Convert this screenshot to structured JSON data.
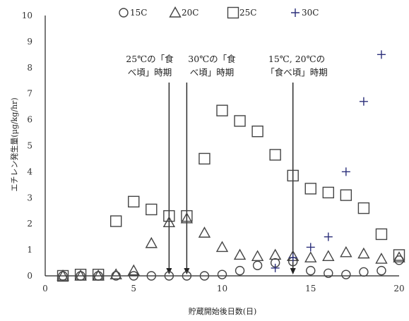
{
  "chart_data": {
    "type": "scatter",
    "title": "",
    "xlabel": "貯蔵開始後日数(日)",
    "ylabel": "エチレン発生量(μg/kg/hr)",
    "xlim": [
      0,
      20
    ],
    "ylim": [
      0,
      10
    ],
    "x_ticks": [
      "0",
      "5",
      "10",
      "15",
      "20"
    ],
    "y_ticks": [
      "0",
      "1",
      "2",
      "3",
      "4",
      "5",
      "6",
      "7",
      "8",
      "9",
      "10"
    ],
    "legend_position": "top",
    "series": [
      {
        "name": "15C",
        "marker": "circle",
        "x": [
          1,
          2,
          3,
          4,
          5,
          6,
          7,
          8,
          9,
          10,
          11,
          12,
          13,
          14,
          15,
          16,
          17,
          18,
          19,
          20
        ],
        "y": [
          0,
          0,
          0,
          0,
          0,
          0,
          0,
          0,
          0,
          0.05,
          0.2,
          0.4,
          0.5,
          0.55,
          0.2,
          0.1,
          0.05,
          0.15,
          0.2,
          0.6
        ]
      },
      {
        "name": "20C",
        "marker": "triangle",
        "x": [
          1,
          2,
          3,
          4,
          5,
          6,
          7,
          8,
          9,
          10,
          11,
          12,
          13,
          14,
          15,
          16,
          17,
          18,
          19,
          20
        ],
        "y": [
          0,
          0,
          0,
          0.05,
          0.2,
          1.25,
          2.05,
          2.2,
          1.65,
          1.1,
          0.8,
          0.75,
          0.8,
          0.75,
          0.7,
          0.75,
          0.9,
          0.85,
          0.65,
          0.7
        ]
      },
      {
        "name": "25C",
        "marker": "square",
        "x": [
          1,
          2,
          3,
          4,
          5,
          6,
          7,
          8,
          9,
          10,
          11,
          12,
          13,
          14,
          15,
          16,
          17,
          18,
          19,
          20
        ],
        "y": [
          0,
          0.05,
          0.05,
          2.1,
          2.85,
          2.55,
          2.3,
          2.3,
          4.5,
          6.35,
          5.95,
          5.55,
          4.65,
          3.85,
          3.35,
          3.2,
          3.1,
          2.6,
          1.6,
          0.8
        ]
      },
      {
        "name": "30C",
        "marker": "plus",
        "x": [
          13,
          14,
          15,
          16,
          17,
          18,
          19
        ],
        "y": [
          0.3,
          0.7,
          1.1,
          1.5,
          4.0,
          6.7,
          8.5
        ]
      }
    ],
    "annotations": [
      {
        "lines": [
          "25℃の「食",
          "べ頃」時期"
        ],
        "arrow_x": 7
      },
      {
        "lines": [
          "30℃の「食",
          "べ頃」時期"
        ],
        "arrow_x": 8
      },
      {
        "lines": [
          "15℃, 20℃の",
          "「食べ頃」時期"
        ],
        "arrow_x": 14
      }
    ]
  },
  "colors": {
    "axis": "#222222",
    "marker": "#444444",
    "plus": "#2b2f7a",
    "background": "#ffffff"
  }
}
